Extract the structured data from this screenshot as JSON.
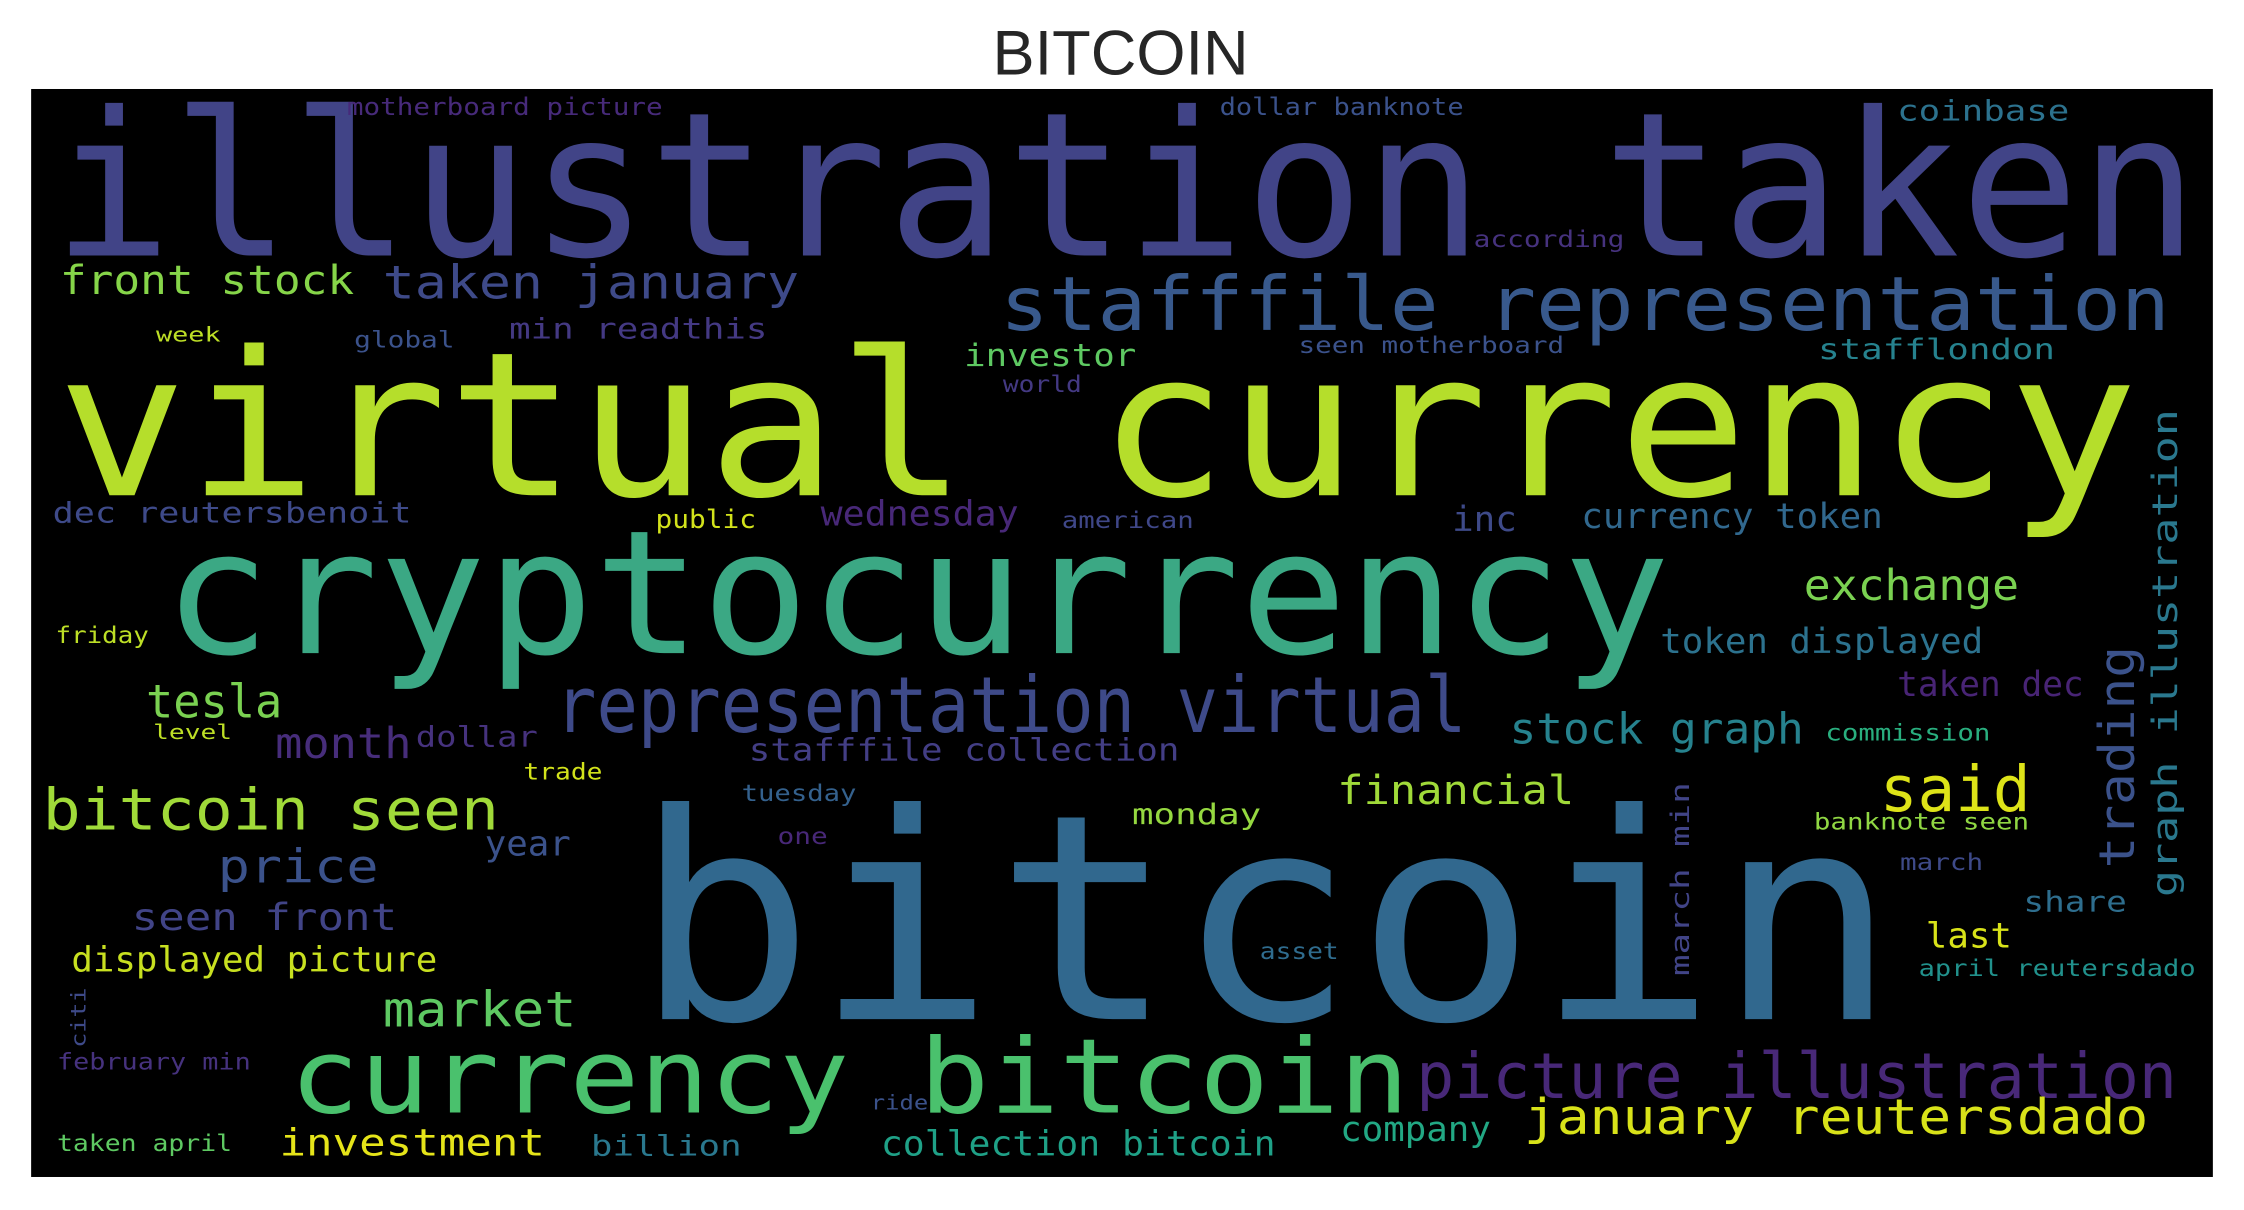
{
  "title": "BITCOIN",
  "words": [
    {
      "text": "illustration taken",
      "color": "#414487"
    },
    {
      "text": "virtual currency",
      "color": "#b5de2b"
    },
    {
      "text": "cryptocurrency",
      "color": "#3ba884"
    },
    {
      "text": "bitcoin",
      "color": "#31688e"
    },
    {
      "text": "currency bitcoin",
      "color": "#4ac16d"
    },
    {
      "text": "representation virtual",
      "color": "#3e4a89"
    },
    {
      "text": "stafffile representation",
      "color": "#38598c"
    },
    {
      "text": "picture illustration",
      "color": "#482878"
    },
    {
      "text": "january reutersdado",
      "color": "#d8e219"
    },
    {
      "text": "said",
      "color": "#dde318"
    },
    {
      "text": "bitcoin seen",
      "color": "#a0da39"
    },
    {
      "text": "market",
      "color": "#5ec962"
    },
    {
      "text": "price",
      "color": "#3b528b"
    },
    {
      "text": "tesla",
      "color": "#7ad151"
    },
    {
      "text": "month",
      "color": "#472d7b"
    },
    {
      "text": "front stock",
      "color": "#86d549"
    },
    {
      "text": "taken january",
      "color": "#3e4a89"
    },
    {
      "text": "min readthis",
      "color": "#443983"
    },
    {
      "text": "investor",
      "color": "#5ec962"
    },
    {
      "text": "exchange",
      "color": "#7ad151"
    },
    {
      "text": "currency token",
      "color": "#31688e"
    },
    {
      "text": "token displayed",
      "color": "#2c728e"
    },
    {
      "text": "stock graph",
      "color": "#26828e"
    },
    {
      "text": "trading",
      "color": "#3b528b"
    },
    {
      "text": "graph illustration",
      "color": "#2a788e"
    },
    {
      "text": "financial",
      "color": "#a0da39"
    },
    {
      "text": "monday",
      "color": "#95d840"
    },
    {
      "text": "stafffile collection",
      "color": "#433e85"
    },
    {
      "text": "displayed picture",
      "color": "#c8e020"
    },
    {
      "text": "seen front",
      "color": "#414487"
    },
    {
      "text": "investment",
      "color": "#e5e419"
    },
    {
      "text": "collection bitcoin",
      "color": "#1fa187"
    },
    {
      "text": "billion",
      "color": "#2a788e"
    },
    {
      "text": "company",
      "color": "#22a884"
    },
    {
      "text": "last",
      "color": "#d8e219"
    },
    {
      "text": "share",
      "color": "#2e6e8e"
    },
    {
      "text": "april reutersdado",
      "color": "#21918c"
    },
    {
      "text": "banknote seen",
      "color": "#90d743"
    },
    {
      "text": "commission",
      "color": "#29af7f"
    },
    {
      "text": "taken dec",
      "color": "#482475"
    },
    {
      "text": "stafflondon",
      "color": "#26828e"
    },
    {
      "text": "coinbase",
      "color": "#2c728e"
    },
    {
      "text": "motherboard picture",
      "color": "#472a7a"
    },
    {
      "text": "dollar banknote",
      "color": "#3b528b"
    },
    {
      "text": "dec reutersbenoit",
      "color": "#3e4a89"
    },
    {
      "text": "wednesday",
      "color": "#482878"
    },
    {
      "text": "public",
      "color": "#d2e21b"
    },
    {
      "text": "american",
      "color": "#3f4788"
    },
    {
      "text": "inc",
      "color": "#3e4a89"
    },
    {
      "text": "year",
      "color": "#3b528b"
    },
    {
      "text": "friday",
      "color": "#bddf26"
    },
    {
      "text": "trade",
      "color": "#d2e21b"
    },
    {
      "text": "tuesday",
      "color": "#34618d"
    },
    {
      "text": "dollar",
      "color": "#46327e"
    },
    {
      "text": "level",
      "color": "#bddf26"
    },
    {
      "text": "taken april",
      "color": "#5ec962"
    },
    {
      "text": "february min",
      "color": "#46327e"
    },
    {
      "text": "asset",
      "color": "#2f6c8e"
    },
    {
      "text": "march min",
      "color": "#414487"
    },
    {
      "text": "world",
      "color": "#443983"
    },
    {
      "text": "global",
      "color": "#3b528b"
    },
    {
      "text": "week",
      "color": "#bddf26"
    },
    {
      "text": "according",
      "color": "#46327e"
    },
    {
      "text": "march",
      "color": "#3e4a89"
    },
    {
      "text": "seen motherboard",
      "color": "#3b528b"
    },
    {
      "text": "one",
      "color": "#482878"
    },
    {
      "text": "ride",
      "color": "#3b528b"
    },
    {
      "text": "citi",
      "color": "#3e4a89"
    }
  ]
}
